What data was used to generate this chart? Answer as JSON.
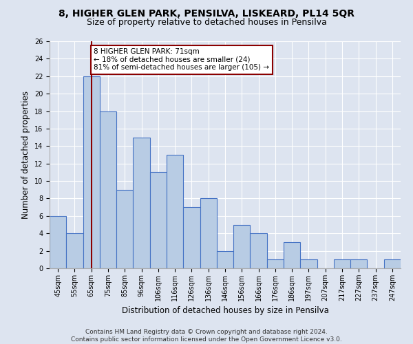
{
  "title1": "8, HIGHER GLEN PARK, PENSILVA, LISKEARD, PL14 5QR",
  "title2": "Size of property relative to detached houses in Pensilva",
  "xlabel": "Distribution of detached houses by size in Pensilva",
  "ylabel": "Number of detached properties",
  "bins": [
    "45sqm",
    "55sqm",
    "65sqm",
    "75sqm",
    "85sqm",
    "96sqm",
    "106sqm",
    "116sqm",
    "126sqm",
    "136sqm",
    "146sqm",
    "156sqm",
    "166sqm",
    "176sqm",
    "186sqm",
    "197sqm",
    "207sqm",
    "217sqm",
    "227sqm",
    "237sqm",
    "247sqm"
  ],
  "values": [
    6,
    4,
    22,
    18,
    9,
    15,
    11,
    13,
    7,
    8,
    2,
    5,
    4,
    1,
    3,
    1,
    0,
    1,
    1,
    0,
    1
  ],
  "bar_color": "#b8cce4",
  "bar_edge_color": "#4472c4",
  "bar_linewidth": 0.8,
  "vline_x": 2,
  "vline_color": "#8b0000",
  "annotation_text": "8 HIGHER GLEN PARK: 71sqm\n← 18% of detached houses are smaller (24)\n81% of semi-detached houses are larger (105) →",
  "annotation_box_color": "#ffffff",
  "annotation_box_edgecolor": "#8b0000",
  "ylim": [
    0,
    26
  ],
  "yticks": [
    0,
    2,
    4,
    6,
    8,
    10,
    12,
    14,
    16,
    18,
    20,
    22,
    24,
    26
  ],
  "background_color": "#dde4f0",
  "grid_color": "#ffffff",
  "footer": "Contains HM Land Registry data © Crown copyright and database right 2024.\nContains public sector information licensed under the Open Government Licence v3.0.",
  "title1_fontsize": 10,
  "title2_fontsize": 9,
  "xlabel_fontsize": 8.5,
  "ylabel_fontsize": 8.5,
  "tick_fontsize": 7,
  "footer_fontsize": 6.5,
  "annot_fontsize": 7.5
}
